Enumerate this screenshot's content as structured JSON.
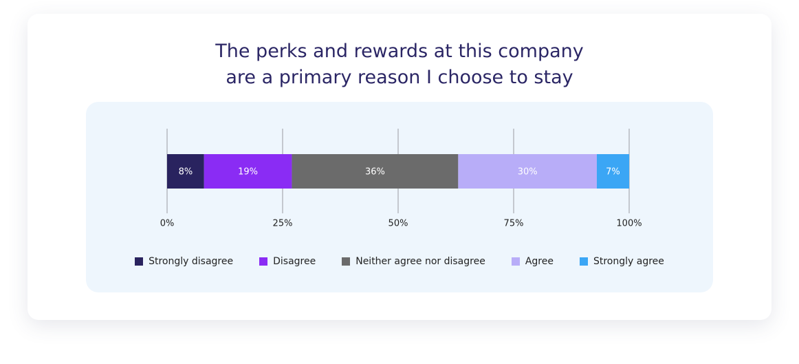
{
  "chart_data": {
    "type": "stacked-bar-horizontal",
    "title": "The perks and rewards at this company are a primary reason I choose to stay",
    "series": [
      {
        "name": "Strongly disagree",
        "color": "#29235f",
        "values": [
          8
        ],
        "value_labels": [
          "8%"
        ]
      },
      {
        "name": "Disagree",
        "color": "#8a2cf4",
        "values": [
          19
        ],
        "value_labels": [
          "19%"
        ]
      },
      {
        "name": "Neither agree nor disagree",
        "color": "#6b6b6b",
        "values": [
          36
        ],
        "value_labels": [
          "36%"
        ]
      },
      {
        "name": "Agree",
        "color": "#b8adf8",
        "values": [
          30
        ],
        "value_labels": [
          "30%"
        ]
      },
      {
        "name": "Strongly agree",
        "color": "#3ba6f5",
        "values": [
          7
        ],
        "value_labels": [
          "7%"
        ]
      }
    ],
    "xlim": [
      0,
      100
    ],
    "xticks": [
      {
        "value": 0,
        "label": "0%"
      },
      {
        "value": 25,
        "label": "25%"
      },
      {
        "value": 50,
        "label": "50%"
      },
      {
        "value": 75,
        "label": "75%"
      },
      {
        "value": 100,
        "label": "100%"
      }
    ],
    "grid": true
  }
}
